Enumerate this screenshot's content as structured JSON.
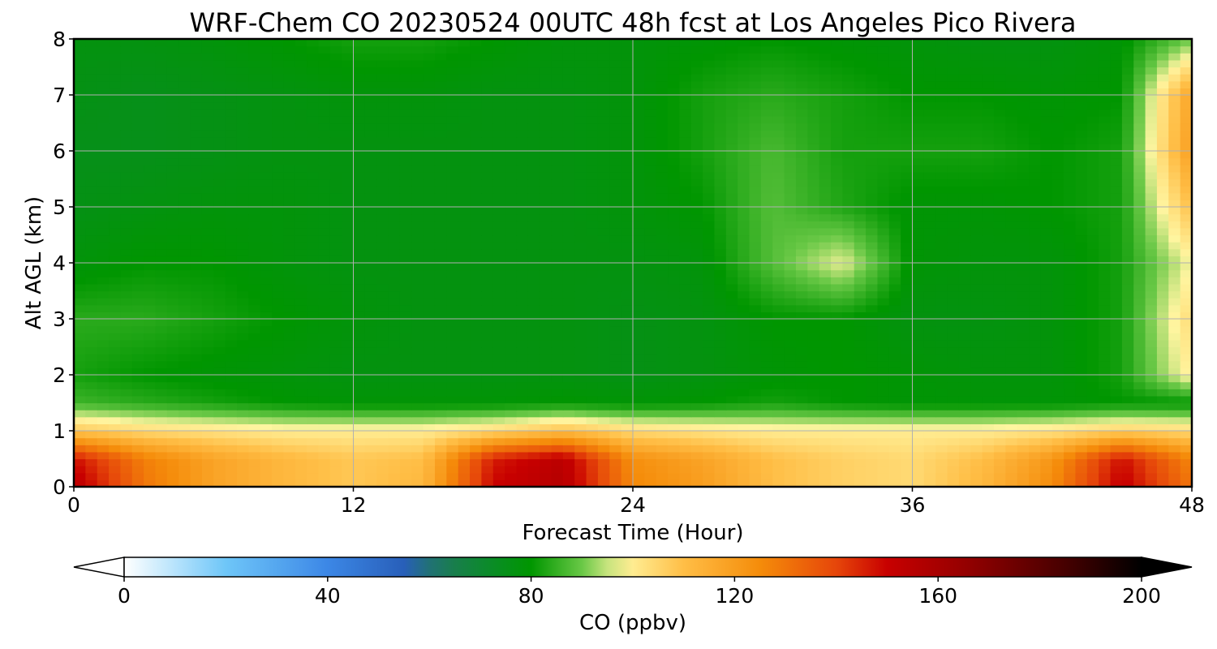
{
  "chart_data": {
    "type": "heatmap",
    "title": "WRF-Chem CO  20230524 00UTC 48h fcst at Los Angeles Pico Rivera",
    "xlabel": "Forecast Time (Hour)",
    "ylabel": "Alt AGL (km)",
    "xlim": [
      0,
      48
    ],
    "ylim": [
      0,
      8
    ],
    "x_ticks": [
      "0",
      "12",
      "24",
      "36",
      "48"
    ],
    "y_ticks": [
      "0",
      "1",
      "2",
      "3",
      "4",
      "5",
      "6",
      "7",
      "8"
    ],
    "grid": true,
    "colorbar": {
      "label": "CO  (ppbv)",
      "min": 0,
      "max": 200,
      "ticks": [
        "0",
        "40",
        "80",
        "120",
        "160",
        "200"
      ],
      "extend": "both",
      "orientation": "horizontal",
      "placement": "bottom"
    },
    "x_hours": [
      0,
      3,
      6,
      9,
      12,
      15,
      18,
      21,
      24,
      27,
      30,
      33,
      36,
      39,
      42,
      45,
      48
    ],
    "y_km": [
      0,
      0.5,
      1,
      1.5,
      2,
      3,
      4,
      5,
      6,
      7,
      8
    ],
    "co_ppbv": [
      [
        155,
        130,
        118,
        112,
        108,
        112,
        150,
        156,
        126,
        120,
        110,
        106,
        104,
        112,
        125,
        152,
        130
      ],
      [
        148,
        128,
        118,
        112,
        108,
        110,
        146,
        154,
        124,
        118,
        110,
        106,
        104,
        110,
        122,
        148,
        126
      ],
      [
        108,
        104,
        102,
        100,
        100,
        100,
        104,
        110,
        104,
        102,
        100,
        100,
        100,
        100,
        102,
        106,
        104
      ],
      [
        86,
        84,
        82,
        80,
        79,
        79,
        79,
        80,
        79,
        80,
        82,
        80,
        79,
        79,
        79,
        80,
        80
      ],
      [
        82,
        80,
        79,
        78,
        77,
        77,
        77,
        77,
        76,
        77,
        79,
        80,
        79,
        78,
        78,
        82,
        100
      ],
      [
        84,
        84,
        82,
        80,
        78,
        77,
        77,
        77,
        76,
        77,
        80,
        80,
        77,
        77,
        78,
        82,
        104
      ],
      [
        78,
        80,
        80,
        78,
        77,
        77,
        77,
        77,
        77,
        78,
        88,
        97,
        79,
        78,
        78,
        82,
        98
      ],
      [
        76,
        77,
        78,
        78,
        77,
        77,
        77,
        77,
        78,
        80,
        88,
        83,
        79,
        79,
        80,
        82,
        110
      ],
      [
        75,
        75,
        76,
        77,
        77,
        77,
        77,
        77,
        78,
        82,
        87,
        82,
        82,
        82,
        80,
        82,
        120
      ],
      [
        76,
        75,
        76,
        77,
        78,
        78,
        77,
        77,
        78,
        82,
        84,
        82,
        80,
        80,
        79,
        80,
        118
      ],
      [
        77,
        77,
        78,
        80,
        82,
        82,
        80,
        78,
        78,
        79,
        80,
        79,
        78,
        77,
        77,
        79,
        90
      ]
    ]
  }
}
